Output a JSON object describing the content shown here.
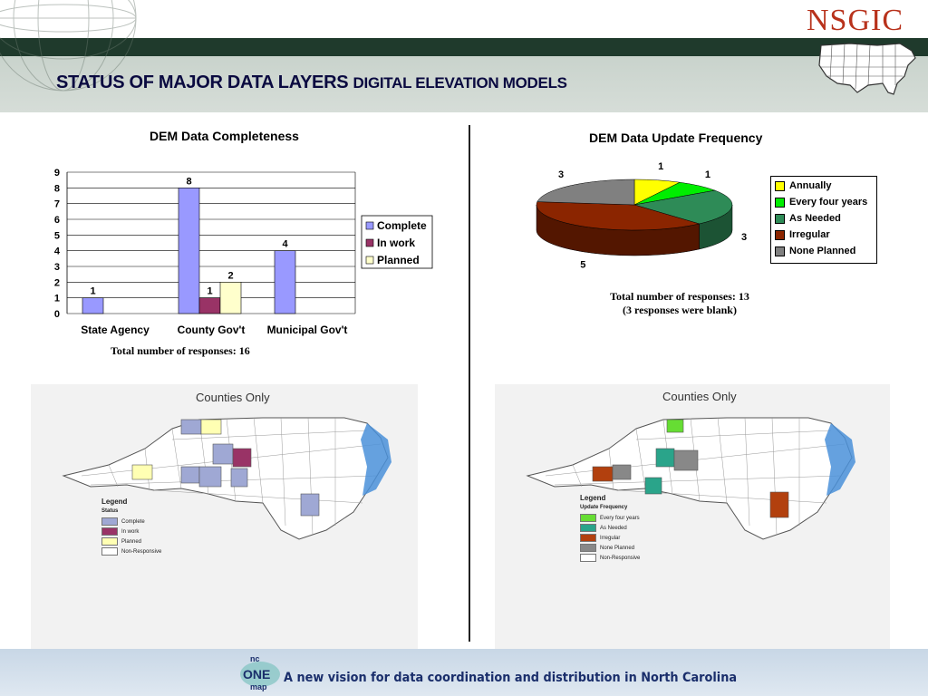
{
  "header": {
    "title_main": "STATUS OF MAJOR DATA LAYERS",
    "title_sub": "DIGITAL ELEVATION MODELS",
    "logo_text": "NSGIC"
  },
  "chart_data": [
    {
      "type": "bar",
      "title": "DEM Data Completeness",
      "categories": [
        "State Agency",
        "County Gov't",
        "Municipal Gov't"
      ],
      "series": [
        {
          "name": "Complete",
          "values": [
            1,
            8,
            4
          ],
          "color": "#9999ff"
        },
        {
          "name": "In work",
          "values": [
            0,
            1,
            0
          ],
          "color": "#993366"
        },
        {
          "name": "Planned",
          "values": [
            0,
            2,
            0
          ],
          "color": "#ffffcc"
        }
      ],
      "data_labels": [
        [
          "1",
          "8",
          "4"
        ],
        [
          "",
          "1",
          ""
        ],
        [
          "",
          "2",
          ""
        ]
      ],
      "ylim": [
        0,
        9
      ],
      "yticks": [
        "0",
        "1",
        "2",
        "3",
        "4",
        "5",
        "6",
        "7",
        "8",
        "9"
      ],
      "grid": true,
      "legend": "right",
      "note": "Total number of  responses: 16"
    },
    {
      "type": "pie",
      "title": "DEM Data Update Frequency",
      "labels": [
        "Annually",
        "Every four years",
        "As Needed",
        "Irregular",
        "None Planned"
      ],
      "values": [
        1,
        1,
        3,
        5,
        3
      ],
      "colors": [
        "#ffff00",
        "#00ee00",
        "#2e8b57",
        "#8b2500",
        "#808080"
      ],
      "legend": "right",
      "note_line1": "Total number of responses: 13",
      "note_line2": "(3 responses were blank)"
    }
  ],
  "left_map": {
    "title": "Counties Only",
    "legend_title": "Legend",
    "legend_subtitle": "Status",
    "items": [
      {
        "label": "Complete",
        "color": "#9fa8d4"
      },
      {
        "label": "In work",
        "color": "#993366"
      },
      {
        "label": "Planned",
        "color": "#ffffb3"
      },
      {
        "label": "Non-Responsive",
        "color": "#ffffff"
      }
    ]
  },
  "right_map": {
    "title": "Counties Only",
    "legend_title": "Legend",
    "legend_subtitle": "Update Frequency",
    "items": [
      {
        "label": "Every four years",
        "color": "#66dd33"
      },
      {
        "label": "As Needed",
        "color": "#2aa48a"
      },
      {
        "label": "Irregular",
        "color": "#b2400e"
      },
      {
        "label": "None Planned",
        "color": "#888888"
      },
      {
        "label": "Non-Responsive",
        "color": "#ffffff"
      }
    ]
  },
  "footer": {
    "logo_top": "nc",
    "logo_mid": "ONE",
    "logo_bottom": "map",
    "tagline": "A new vision for data coordination and distribution in North Carolina"
  }
}
